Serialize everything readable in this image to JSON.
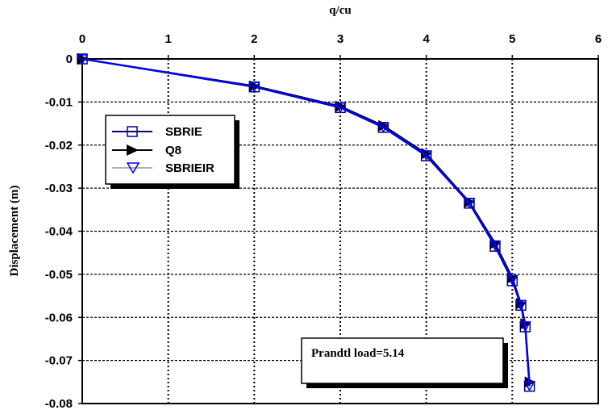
{
  "chart_data": {
    "type": "line",
    "title": "",
    "xlabel": "q/cu",
    "ylabel": "Displacement (m)",
    "xlim": [
      0,
      6
    ],
    "ylim": [
      -0.08,
      0
    ],
    "x_ticks": [
      "0",
      "1",
      "2",
      "3",
      "4",
      "5",
      "6"
    ],
    "y_ticks": [
      "0",
      "-0.01",
      "-0.02",
      "-0.03",
      "-0.04",
      "-0.05",
      "-0.06",
      "-0.07",
      "-0.08"
    ],
    "x_axis_position": "top",
    "grid": true,
    "legend_position": "upper-left",
    "series": [
      {
        "name": "SBRIE",
        "marker": "square",
        "color": "#000080",
        "x": [
          0,
          2,
          3,
          3.5,
          4,
          4.5,
          4.8,
          5,
          5.1,
          5.15,
          5.2
        ],
        "y": [
          0,
          -0.0065,
          -0.0113,
          -0.0159,
          -0.0225,
          -0.0335,
          -0.0435,
          -0.0515,
          -0.0572,
          -0.0622,
          -0.076
        ]
      },
      {
        "name": "Q8",
        "marker": "triangle-right",
        "color": "#000000",
        "x": [
          0,
          2,
          3,
          3.5,
          4,
          4.5,
          4.8,
          5,
          5.1,
          5.15,
          5.2
        ],
        "y": [
          0,
          -0.0063,
          -0.011,
          -0.0155,
          -0.022,
          -0.0332,
          -0.0428,
          -0.0508,
          -0.0568,
          -0.0615,
          -0.075
        ]
      },
      {
        "name": "SBRIEIR",
        "marker": "triangle-down",
        "color": "#0000ff",
        "x": [
          0,
          2,
          3,
          3.5,
          4,
          4.5,
          4.8,
          5,
          5.1,
          5.15,
          5.2
        ],
        "y": [
          0,
          -0.0064,
          -0.0112,
          -0.0158,
          -0.0223,
          -0.0334,
          -0.0432,
          -0.0512,
          -0.0571,
          -0.062,
          -0.0758
        ]
      }
    ],
    "annotation": "Prandtl load=5.14"
  }
}
